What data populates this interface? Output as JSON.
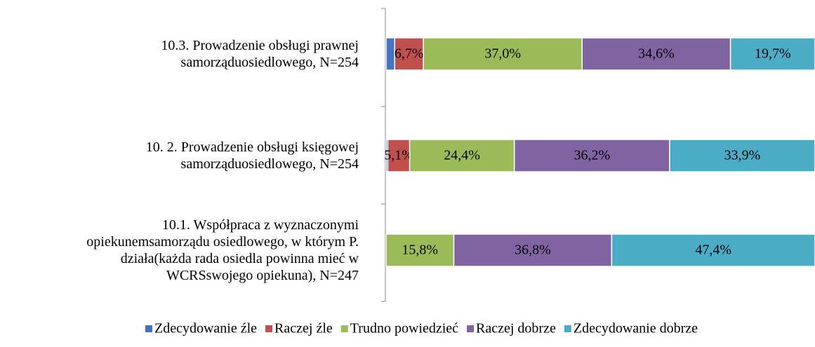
{
  "chart_data": {
    "type": "stacked-barh",
    "categories": [
      "10.3. Prowadzenie obsługi prawnej\nsamorząduosiedlowego, N=254",
      "10. 2. Prowadzenie obsługi księgowej\nsamorząduosiedlowego, N=254",
      "10.1. Współpraca z wyznaczonymi\nopiekunemsamorządu osiedlowego, w którym P.\ndziała(każda rada osiedla powinna mieć w\nWCRSswojego opiekuna), N=247"
    ],
    "series": [
      {
        "name": "Zdecydowanie źle",
        "color": "#4472c4",
        "values": [
          2.0,
          0.4,
          0
        ],
        "value_labels": [
          null,
          null,
          null
        ]
      },
      {
        "name": "Raczej źle",
        "color": "#c0504d",
        "values": [
          6.7,
          5.1,
          0
        ],
        "value_labels": [
          "6,7%",
          "5,1%",
          null
        ]
      },
      {
        "name": "Trudno powiedzieć",
        "color": "#9bbb59",
        "values": [
          37.0,
          24.4,
          15.8
        ],
        "value_labels": [
          "37,0%",
          "24,4%",
          "15,8%"
        ]
      },
      {
        "name": "Raczej dobrze",
        "color": "#8064a2",
        "values": [
          34.6,
          36.2,
          36.8
        ],
        "value_labels": [
          "34,6%",
          "36,2%",
          "36,8%"
        ]
      },
      {
        "name": "Zdecydowanie dobrze",
        "color": "#4bacc6",
        "values": [
          19.7,
          33.9,
          47.4
        ],
        "value_labels": [
          "19,7%",
          "33,9%",
          "47,4%"
        ]
      }
    ],
    "xlim": [
      0,
      100
    ],
    "legend": "bottom"
  }
}
